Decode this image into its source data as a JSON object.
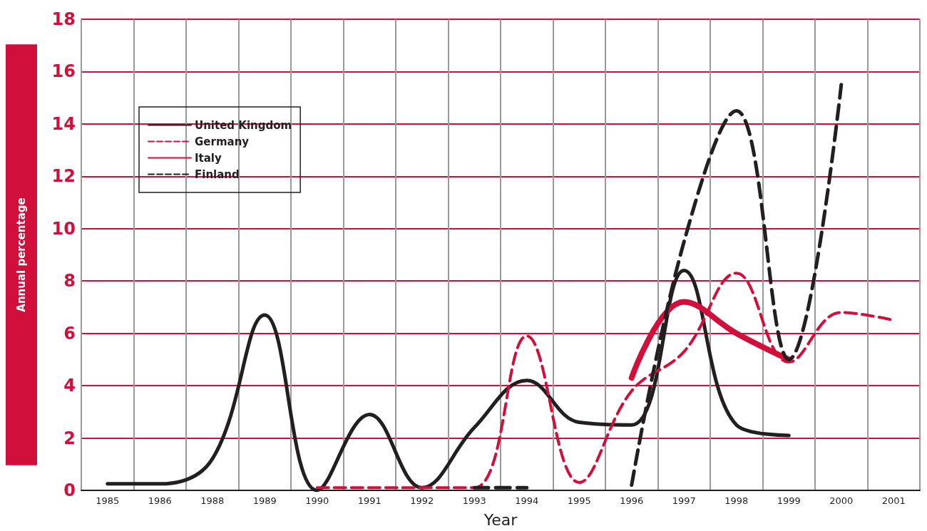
{
  "chart_data": {
    "type": "line",
    "xlabel": "Year",
    "ylabel": "Annual percentage",
    "categories": [
      "1985",
      "1986",
      "1988",
      "1989",
      "1990",
      "1991",
      "1992",
      "1993",
      "1994",
      "1995",
      "1996",
      "1997",
      "1998",
      "1999",
      "2000",
      "2001"
    ],
    "series": [
      {
        "name": "United Kingdom",
        "color": "#231f20",
        "line_style": "solid",
        "values": [
          0.25,
          0.25,
          1.2,
          6.7,
          0,
          2.9,
          0.1,
          2.4,
          4.2,
          2.6,
          2.5,
          8.4,
          2.5,
          2.1,
          null,
          null
        ]
      },
      {
        "name": "Germany",
        "color": "#d0103a",
        "line_style": "dashed",
        "values": [
          null,
          null,
          null,
          null,
          0.1,
          0.1,
          0.1,
          0.1,
          5.9,
          0.3,
          3.8,
          5.3,
          8.3,
          4.9,
          6.8,
          6.5
        ]
      },
      {
        "name": "Italy",
        "color": "#d0103a",
        "line_style": "solid",
        "values": [
          null,
          null,
          null,
          null,
          null,
          null,
          null,
          null,
          null,
          null,
          4.3,
          7.2,
          6.0,
          5.0,
          null,
          null
        ]
      },
      {
        "name": "Finland",
        "color": "#231f20",
        "line_style": "dashed",
        "values": [
          null,
          null,
          null,
          null,
          null,
          null,
          null,
          0.1,
          0.1,
          null,
          0.2,
          9.5,
          14.5,
          5.0,
          15.5,
          null
        ]
      }
    ],
    "ylim": [
      0,
      18
    ],
    "yticks": [
      0,
      2,
      4,
      6,
      8,
      10,
      12,
      14,
      16,
      18
    ],
    "grid": true,
    "legend": "top left",
    "marker": "none"
  }
}
